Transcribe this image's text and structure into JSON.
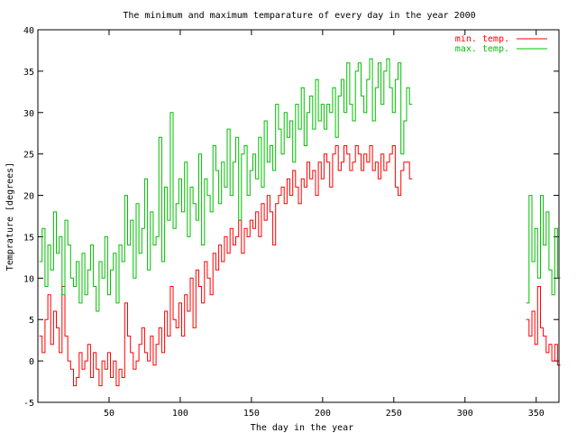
{
  "chart_data": {
    "type": "line",
    "title": "The minimum and maximum temparature of every day in the year 2000",
    "xlabel": "The day in the year",
    "ylabel": "Temprature [degrees]",
    "xlim": [
      0,
      366
    ],
    "ylim": [
      -5,
      40
    ],
    "xticks": [
      50,
      100,
      150,
      200,
      250,
      300,
      350
    ],
    "yticks": [
      -5,
      0,
      5,
      10,
      15,
      20,
      25,
      30,
      35,
      40
    ],
    "grid": false,
    "legend_position": "top-right",
    "segments": [
      {
        "x_start": 1,
        "x_step": 2
      },
      {
        "x_start": 343,
        "x_step": 2
      }
    ],
    "series": [
      {
        "name": "min. temp.",
        "color": "#ff0000",
        "values": [
          [
            3,
            1,
            5,
            8,
            2,
            6,
            4,
            1,
            9,
            3,
            0,
            -1,
            -3,
            -2,
            1,
            -1,
            0,
            2,
            -2,
            1,
            -1,
            -3,
            0,
            -1,
            1,
            -2,
            0,
            -3,
            -1,
            -2,
            7,
            3,
            1,
            -1,
            0,
            2,
            4,
            1,
            0,
            3,
            -0.5,
            2,
            4,
            1,
            6,
            3,
            9,
            5,
            4,
            7,
            3,
            8,
            6,
            10,
            4,
            11,
            9,
            7,
            12,
            10,
            8,
            13,
            11,
            14,
            12,
            15,
            13,
            16,
            14,
            15,
            17,
            13,
            16,
            15,
            17,
            16,
            18,
            15,
            19,
            17,
            20,
            18,
            14,
            19,
            20,
            21,
            19,
            22,
            20,
            23,
            21,
            19,
            22,
            21,
            24,
            22,
            23,
            20,
            24,
            22,
            25,
            24,
            21,
            25,
            26,
            23,
            24,
            26,
            25,
            23,
            24,
            26,
            25,
            23,
            25,
            24,
            26,
            23,
            24,
            22,
            25,
            23,
            24,
            25,
            26,
            21,
            20,
            23,
            24,
            24,
            22
          ],
          [
            5,
            3,
            6,
            2,
            9,
            4,
            3,
            1,
            2,
            0,
            2,
            -0.5
          ]
        ]
      },
      {
        "name": "max. temp.",
        "color": "#00c000",
        "values": [
          [
            12,
            16,
            9,
            14,
            11,
            18,
            13,
            15,
            8,
            17,
            14,
            10,
            9,
            12,
            7,
            13,
            8,
            11,
            14,
            9,
            6,
            12,
            10,
            15,
            8,
            11,
            13,
            7,
            14,
            12,
            20,
            14,
            17,
            10,
            19,
            13,
            16,
            22,
            11,
            18,
            14,
            15,
            27,
            12,
            21,
            17,
            30,
            16,
            19,
            22,
            18,
            24,
            15,
            21,
            19,
            17,
            25,
            14,
            22,
            20,
            18,
            26,
            23,
            19,
            24,
            21,
            28,
            20,
            24,
            27,
            17,
            25,
            26,
            20,
            23,
            25,
            22,
            27,
            21,
            29,
            24,
            26,
            23,
            31,
            28,
            25,
            30,
            27,
            29,
            24,
            31,
            28,
            33,
            26,
            30,
            32,
            28,
            34,
            29,
            31,
            28,
            31,
            30,
            33,
            27,
            32,
            34,
            30,
            36,
            31,
            29,
            35,
            36,
            32,
            30,
            34,
            36.5,
            29,
            33,
            36,
            31,
            35,
            36.5,
            33,
            30,
            34,
            36,
            25,
            29,
            33,
            31
          ],
          [
            7,
            20,
            12,
            16,
            10,
            20,
            14,
            18,
            11,
            8,
            16,
            10
          ]
        ]
      }
    ]
  }
}
